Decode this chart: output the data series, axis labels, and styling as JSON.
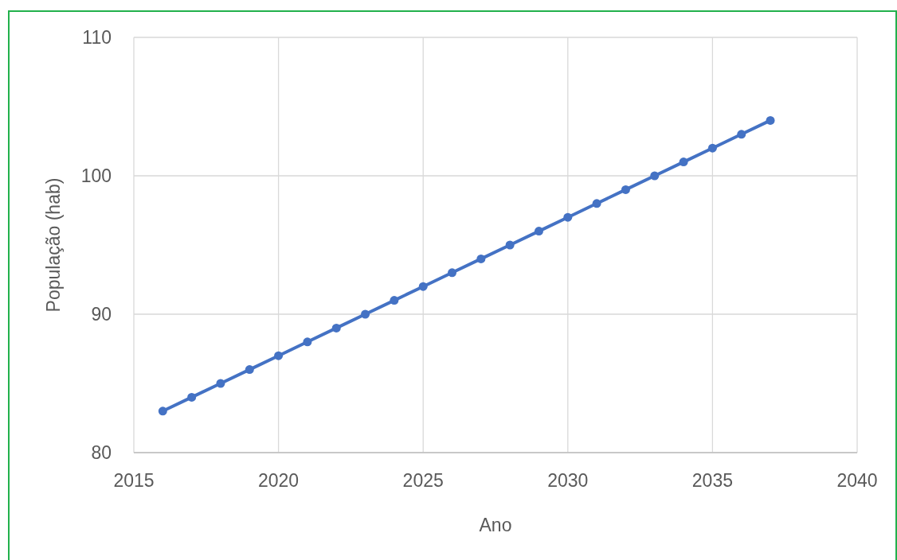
{
  "chart_data": {
    "type": "line",
    "xlabel": "Ano",
    "ylabel": "População (hab)",
    "x": [
      2016,
      2017,
      2018,
      2019,
      2020,
      2021,
      2022,
      2023,
      2024,
      2025,
      2026,
      2027,
      2028,
      2029,
      2030,
      2031,
      2032,
      2033,
      2034,
      2035,
      2036,
      2037
    ],
    "series": [
      {
        "color": "#4472c4",
        "values": [
          83,
          84,
          85,
          86,
          87,
          88,
          89,
          90,
          91,
          92,
          93,
          94,
          95,
          96,
          97,
          98,
          99,
          100,
          101,
          102,
          103,
          104
        ]
      }
    ],
    "xlim": [
      2015,
      2040
    ],
    "xticks": [
      2015,
      2020,
      2025,
      2030,
      2035,
      2040
    ],
    "ylim": [
      80,
      110
    ],
    "yticks": [
      80,
      90,
      100,
      110
    ],
    "grid": true,
    "marker": "circle",
    "line_style": "solid"
  }
}
